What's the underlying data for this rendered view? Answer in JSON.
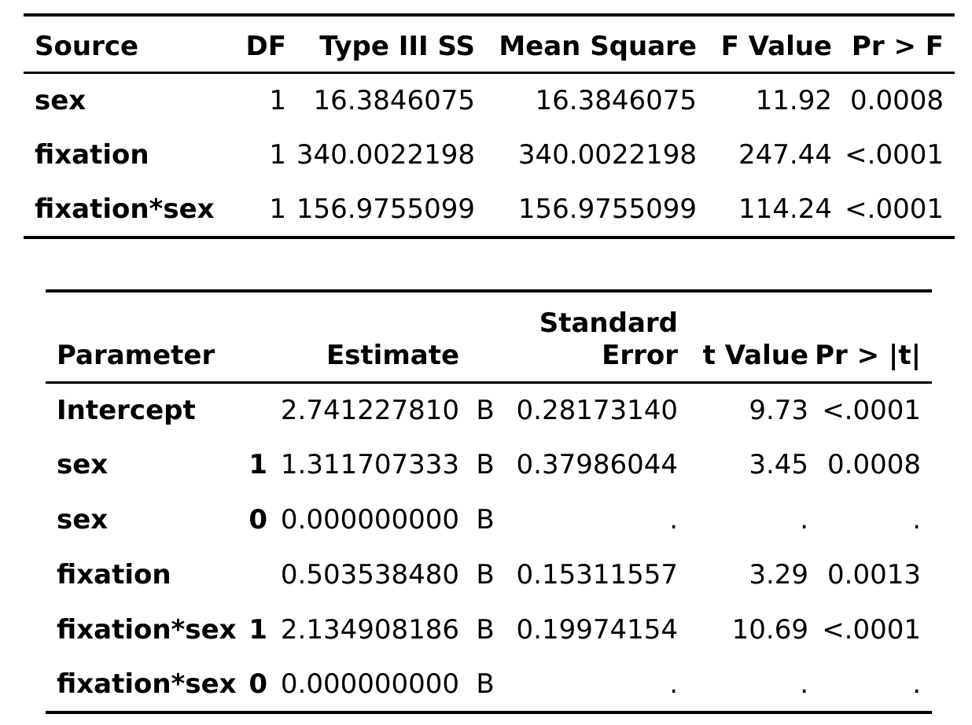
{
  "anova": {
    "headers": {
      "source": "Source",
      "df": "DF",
      "ss": "Type III SS",
      "ms": "Mean Square",
      "f": "F Value",
      "p": "Pr > F"
    },
    "rows": [
      {
        "source": "sex",
        "df": "1",
        "ss": "16.3846075",
        "ms": "16.3846075",
        "f": "11.92",
        "p": "0.0008"
      },
      {
        "source": "fixation",
        "df": "1",
        "ss": "340.0022198",
        "ms": "340.0022198",
        "f": "247.44",
        "p": "<.0001"
      },
      {
        "source": "fixation*sex",
        "df": "1",
        "ss": "156.9755099",
        "ms": "156.9755099",
        "f": "114.24",
        "p": "<.0001"
      }
    ]
  },
  "params": {
    "headers": {
      "parameter": "Parameter",
      "estimate": "Estimate",
      "se_line1": "Standard",
      "se_line2": "Error",
      "t": "t Value",
      "p": "Pr > |t|"
    },
    "rows": [
      {
        "name": "Intercept",
        "level": "",
        "estimate": "2.741227810",
        "flag": "B",
        "se": "0.28173140",
        "t": "9.73",
        "p": "<.0001"
      },
      {
        "name": "sex",
        "level": "1",
        "estimate": "1.311707333",
        "flag": "B",
        "se": "0.37986044",
        "t": "3.45",
        "p": "0.0008"
      },
      {
        "name": "sex",
        "level": "0",
        "estimate": "0.000000000",
        "flag": "B",
        "se": ".",
        "t": ".",
        "p": "."
      },
      {
        "name": "fixation",
        "level": "",
        "estimate": "0.503538480",
        "flag": "B",
        "se": "0.15311557",
        "t": "3.29",
        "p": "0.0013"
      },
      {
        "name": "fixation*sex",
        "level": "1",
        "estimate": "2.134908186",
        "flag": "B",
        "se": "0.19974154",
        "t": "10.69",
        "p": "<.0001"
      },
      {
        "name": "fixation*sex",
        "level": "0",
        "estimate": "0.000000000",
        "flag": "B",
        "se": ".",
        "t": ".",
        "p": "."
      }
    ]
  }
}
